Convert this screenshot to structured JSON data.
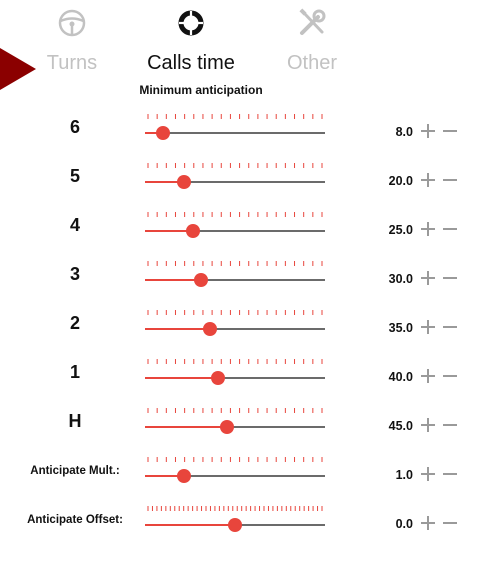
{
  "tabs": [
    {
      "label": "Turns",
      "icon": "steering-wheel-icon",
      "active": false
    },
    {
      "label": "Calls time",
      "icon": "lifebuoy-icon",
      "active": true
    },
    {
      "label": "Other",
      "icon": "wrench-screwdriver-icon",
      "active": false
    }
  ],
  "section_title": "Minimum anticipation",
  "rows": [
    {
      "label": "6",
      "value": "8.0",
      "fraction": 0.1,
      "ticks": 20
    },
    {
      "label": "5",
      "value": "20.0",
      "fraction": 0.215,
      "ticks": 20
    },
    {
      "label": "4",
      "value": "25.0",
      "fraction": 0.265,
      "ticks": 20
    },
    {
      "label": "3",
      "value": "30.0",
      "fraction": 0.31,
      "ticks": 20
    },
    {
      "label": "2",
      "value": "35.0",
      "fraction": 0.36,
      "ticks": 20
    },
    {
      "label": "1",
      "value": "40.0",
      "fraction": 0.405,
      "ticks": 20
    },
    {
      "label": "H",
      "value": "45.0",
      "fraction": 0.455,
      "ticks": 20
    },
    {
      "label": "Anticipate Mult.:",
      "value": "1.0",
      "fraction": 0.215,
      "ticks": 20
    },
    {
      "label": "Anticipate Offset:",
      "value": "0.0",
      "fraction": 0.5,
      "ticks": 40
    }
  ],
  "colors": {
    "accent": "#e8453c",
    "track": "#6b6b6b",
    "inactive": "#c2c2c2",
    "indicator": "#8b0000",
    "button": "#9a9a9a"
  }
}
